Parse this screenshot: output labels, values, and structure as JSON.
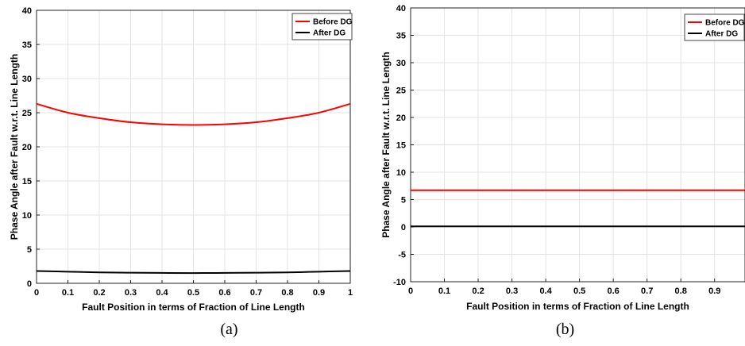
{
  "chart_data": [
    {
      "type": "line",
      "caption": "(a)",
      "xlabel": "Fault Position in terms of Fraction of Line Length",
      "ylabel": "Phase Angle after Fault w.r.t. Line Length",
      "xlim": [
        0,
        1
      ],
      "ylim": [
        0,
        40
      ],
      "xticks": [
        "0",
        "0.1",
        "0.2",
        "0.3",
        "0.4",
        "0.5",
        "0.6",
        "0.7",
        "0.8",
        "0.9",
        "1"
      ],
      "yticks": [
        "0",
        "5",
        "10",
        "15",
        "20",
        "25",
        "30",
        "35",
        "40"
      ],
      "grid": true,
      "legend_position": "top-right",
      "x": [
        0,
        0.1,
        0.2,
        0.3,
        0.4,
        0.5,
        0.6,
        0.7,
        0.8,
        0.9,
        1.0
      ],
      "series": [
        {
          "name": "Before DG",
          "color": "#ff0000",
          "values": [
            26.3,
            25.0,
            24.2,
            23.6,
            23.3,
            23.2,
            23.3,
            23.6,
            24.2,
            25.0,
            26.3
          ]
        },
        {
          "name": "After DG",
          "color": "#000000",
          "values": [
            1.8,
            1.7,
            1.6,
            1.55,
            1.52,
            1.5,
            1.52,
            1.55,
            1.6,
            1.7,
            1.8
          ]
        }
      ]
    },
    {
      "type": "line",
      "caption": "(b)",
      "xlabel": "Fault Position in terms of Fraction of Line Length",
      "ylabel": "Phase Angle after Fault w.r.t. Line Length",
      "xlim": [
        0,
        0.99
      ],
      "ylim": [
        -10,
        40
      ],
      "xticks": [
        "0",
        "0.1",
        "0.2",
        "0.3",
        "0.4",
        "0.5",
        "0.6",
        "0.7",
        "0.8",
        "0.9"
      ],
      "yticks": [
        "-10",
        "-5",
        "0",
        "5",
        "10",
        "15",
        "20",
        "25",
        "30",
        "35",
        "40"
      ],
      "grid": true,
      "legend_position": "top-right",
      "x": [
        0,
        0.99
      ],
      "series": [
        {
          "name": "Before DG",
          "color": "#ff0000",
          "values": [
            6.7,
            6.7
          ]
        },
        {
          "name": "After DG",
          "color": "#000000",
          "values": [
            0.1,
            0.1
          ]
        }
      ]
    }
  ]
}
